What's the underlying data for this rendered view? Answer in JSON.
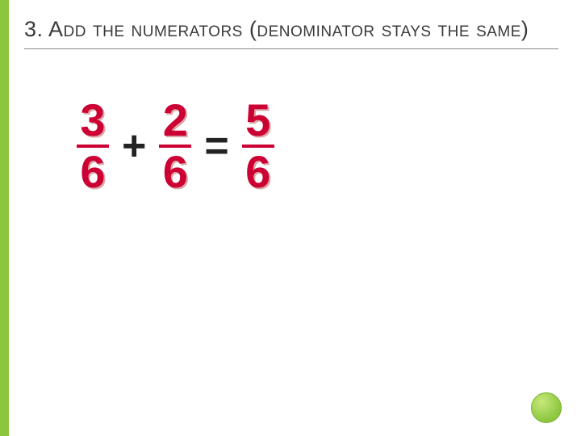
{
  "slide": {
    "number": "3.",
    "title_rest": "  Add the numerators (denominator stays the same)",
    "accent_color": "#8cc63f",
    "text_color": "#3a3a3a",
    "fraction_color": "#cc0033",
    "fraction_shadow": "#d9a6a6"
  },
  "equation": {
    "frac1": {
      "num": "3",
      "den": "6"
    },
    "op1": "+",
    "frac2": {
      "num": "2",
      "den": "6"
    },
    "op2": "=",
    "frac3": {
      "num": "5",
      "den": "6"
    }
  }
}
